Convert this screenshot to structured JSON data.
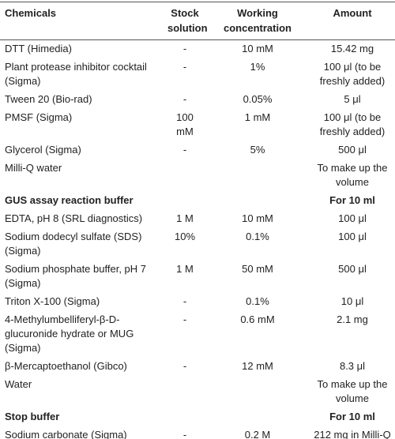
{
  "table": {
    "header": [
      "Chemicals",
      "Stock solution",
      "Working concentration",
      "Amount"
    ],
    "rows": [
      {
        "chemical": "DTT (Himedia)",
        "stock": "-",
        "working": "10 mM",
        "amount": "15.42 mg"
      },
      {
        "chemical": "Plant protease inhibitor cocktail (Sigma)",
        "stock": "-",
        "working": "1%",
        "amount": "100 μl (to be freshly added)"
      },
      {
        "chemical": "Tween 20 (Bio-rad)",
        "stock": "-",
        "working": "0.05%",
        "amount": "5 μl"
      },
      {
        "chemical": "PMSF (Sigma)",
        "stock": "100 mM",
        "working": "1 mM",
        "amount": "100 μl (to be freshly added)"
      },
      {
        "chemical": "Glycerol (Sigma)",
        "stock": "-",
        "working": "5%",
        "amount": "500 μl"
      },
      {
        "chemical": "Milli-Q water",
        "amount": "To make up the volume"
      },
      {
        "section": "GUS assay reaction buffer",
        "amount": "For 10 ml"
      },
      {
        "chemical": "EDTA, pH 8 (SRL diagnostics)",
        "stock": "1 M",
        "working": "10 mM",
        "amount": "100 μl"
      },
      {
        "chemical": "Sodium dodecyl sulfate (SDS) (Sigma)",
        "stock": "10%",
        "working": "0.1%",
        "amount": "100 μl"
      },
      {
        "chemical": "Sodium phosphate buffer, pH 7 (Sigma)",
        "stock": "1 M",
        "working": "50 mM",
        "amount": "500 μl"
      },
      {
        "chemical": "Triton X-100 (Sigma)",
        "stock": "-",
        "working": "0.1%",
        "amount": "10 μl"
      },
      {
        "chemical": "4-Methylumbelliferyl-β-D-glucuronide hydrate or MUG (Sigma)",
        "stock": "-",
        "working": "0.6 mM",
        "amount": "2.1 mg"
      },
      {
        "chemical": "β-Mercaptoethanol (Gibco)",
        "stock": "-",
        "working": "12 mM",
        "amount": "8.3 μl"
      },
      {
        "chemical": "Water",
        "amount": "To make up the volume"
      },
      {
        "section": "Stop buffer",
        "amount": "For 10 ml"
      },
      {
        "chemical": "Sodium carbonate (Sigma)",
        "stock": "-",
        "working": "0.2 M",
        "amount": "212 mg in Milli-Q"
      }
    ]
  }
}
